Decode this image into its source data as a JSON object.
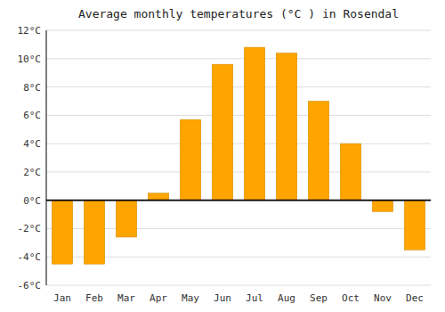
{
  "chart_data": {
    "type": "bar",
    "title": "Average monthly temperatures (°C ) in Rosendal",
    "categories": [
      "Jan",
      "Feb",
      "Mar",
      "Apr",
      "May",
      "Jun",
      "Jul",
      "Aug",
      "Sep",
      "Oct",
      "Nov",
      "Dec"
    ],
    "values": [
      -4.5,
      -4.5,
      -2.6,
      0.5,
      5.7,
      9.6,
      10.8,
      10.4,
      7.0,
      4.0,
      -0.8,
      -3.5
    ],
    "color": "#FFA500",
    "ylim": [
      -6,
      12
    ],
    "yticks": [
      {
        "value": -6,
        "label": "-6°C"
      },
      {
        "value": -4,
        "label": "-4°C"
      },
      {
        "value": -2,
        "label": "-2°C"
      },
      {
        "value": 0,
        "label": "0°C"
      },
      {
        "value": 2,
        "label": "2°C"
      },
      {
        "value": 4,
        "label": "4°C"
      },
      {
        "value": 6,
        "label": "6°C"
      },
      {
        "value": 8,
        "label": "8°C"
      },
      {
        "value": 10,
        "label": "10°C"
      },
      {
        "value": 12,
        "label": "12°C"
      }
    ],
    "grid": true
  }
}
